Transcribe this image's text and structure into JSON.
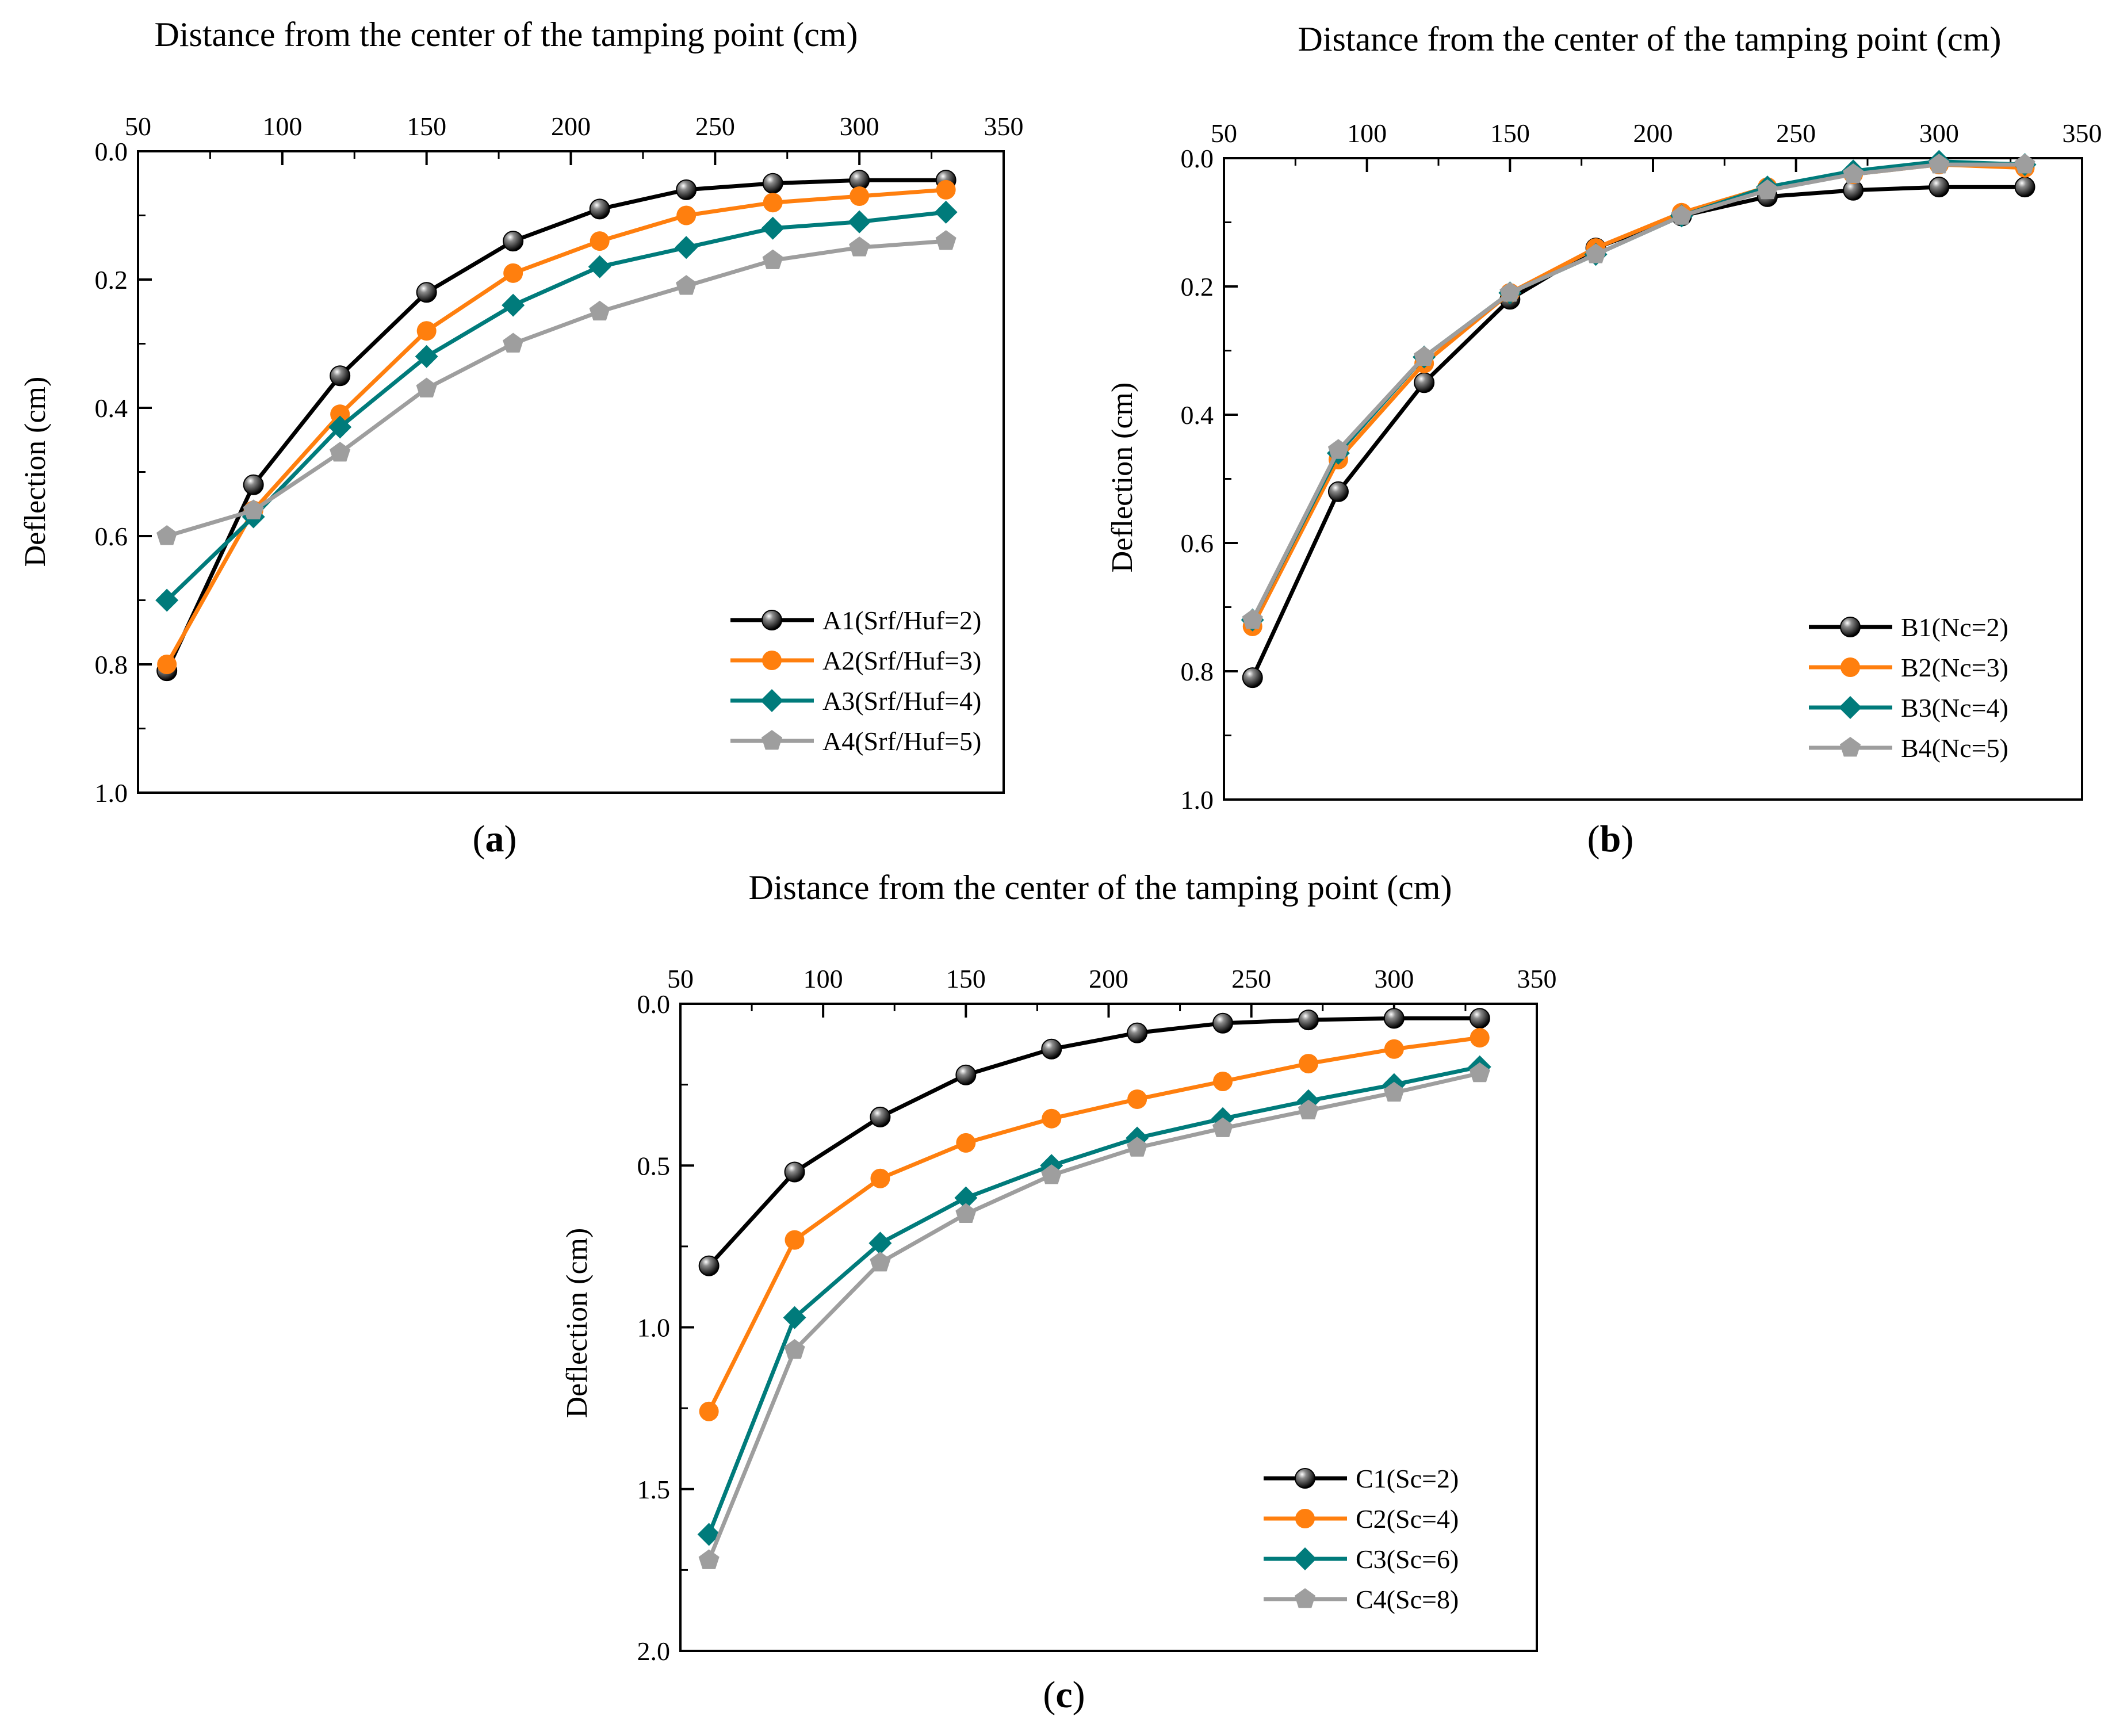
{
  "colors": {
    "series": [
      "#000000",
      "#ff7f0e",
      "#007b7b",
      "#9e9e9e"
    ],
    "axis": "#000000",
    "background": "#ffffff"
  },
  "markers": [
    "ball",
    "circle",
    "diamond",
    "pentagon"
  ],
  "chart_data": [
    {
      "type": "line",
      "panel_label": "a",
      "title": "Distance from the center of the tamping point (cm)",
      "xlabel": "Distance from the center of the tamping point (cm)",
      "ylabel": "Deflection (cm)",
      "xlim": [
        50,
        350
      ],
      "ylim": [
        0.0,
        1.0
      ],
      "y_inverted": true,
      "x_axis_position": "top",
      "xticks": [
        50,
        100,
        150,
        200,
        250,
        300,
        350
      ],
      "yticks": [
        "0.0",
        "0.2",
        "0.4",
        "0.6",
        "0.8",
        "1.0"
      ],
      "ytick_values": [
        0.0,
        0.2,
        0.4,
        0.6,
        0.8,
        1.0
      ],
      "legend_position": "bottom-right",
      "x": [
        60,
        90,
        120,
        150,
        180,
        210,
        240,
        270,
        300,
        330
      ],
      "series": [
        {
          "name": "A1(Srf/Huf=2)",
          "values": [
            0.81,
            0.52,
            0.35,
            0.22,
            0.14,
            0.09,
            0.06,
            0.05,
            0.045,
            0.045
          ]
        },
        {
          "name": "A2(Srf/Huf=3)",
          "values": [
            0.8,
            0.56,
            0.41,
            0.28,
            0.19,
            0.14,
            0.1,
            0.08,
            0.07,
            0.06
          ]
        },
        {
          "name": "A3(Srf/Huf=4)",
          "values": [
            0.7,
            0.57,
            0.43,
            0.32,
            0.24,
            0.18,
            0.15,
            0.12,
            0.11,
            0.095
          ]
        },
        {
          "name": "A4(Srf/Huf=5)",
          "values": [
            0.6,
            0.56,
            0.47,
            0.37,
            0.3,
            0.25,
            0.21,
            0.17,
            0.15,
            0.14
          ]
        }
      ]
    },
    {
      "type": "line",
      "panel_label": "b",
      "title": "Distance from the center of the tamping point (cm)",
      "xlabel": "Distance from the center of the tamping point (cm)",
      "ylabel": "Deflection (cm)",
      "xlim": [
        50,
        350
      ],
      "ylim": [
        0.0,
        1.0
      ],
      "y_inverted": true,
      "x_axis_position": "top",
      "xticks": [
        50,
        100,
        150,
        200,
        250,
        300,
        350
      ],
      "yticks": [
        "0.0",
        "0.2",
        "0.4",
        "0.6",
        "0.8",
        "1.0"
      ],
      "ytick_values": [
        0.0,
        0.2,
        0.4,
        0.6,
        0.8,
        1.0
      ],
      "legend_position": "bottom-right",
      "x": [
        60,
        90,
        120,
        150,
        180,
        210,
        240,
        270,
        300,
        330
      ],
      "series": [
        {
          "name": "B1(Nc=2)",
          "values": [
            0.81,
            0.52,
            0.35,
            0.22,
            0.14,
            0.09,
            0.06,
            0.05,
            0.045,
            0.045
          ]
        },
        {
          "name": "B2(Nc=3)",
          "values": [
            0.73,
            0.47,
            0.32,
            0.21,
            0.14,
            0.085,
            0.045,
            0.025,
            0.01,
            0.015
          ]
        },
        {
          "name": "B3(Nc=4)",
          "values": [
            0.72,
            0.46,
            0.31,
            0.21,
            0.15,
            0.09,
            0.045,
            0.02,
            0.005,
            0.01
          ]
        },
        {
          "name": "B4(Nc=5)",
          "values": [
            0.72,
            0.455,
            0.31,
            0.21,
            0.15,
            0.09,
            0.05,
            0.025,
            0.01,
            0.01
          ]
        }
      ]
    },
    {
      "type": "line",
      "panel_label": "c",
      "title": "Distance from the center of the tamping point (cm)",
      "xlabel": "Distance from the center of the tamping point (cm)",
      "ylabel": "Deflection (cm)",
      "xlim": [
        50,
        350
      ],
      "ylim": [
        0.0,
        2.0
      ],
      "y_inverted": true,
      "x_axis_position": "top",
      "xticks": [
        50,
        100,
        150,
        200,
        250,
        300,
        350
      ],
      "yticks": [
        "0.0",
        "0.5",
        "1.0",
        "1.5",
        "2.0"
      ],
      "ytick_values": [
        0.0,
        0.5,
        1.0,
        1.5,
        2.0
      ],
      "legend_position": "bottom-right",
      "x": [
        60,
        90,
        120,
        150,
        180,
        210,
        240,
        270,
        300,
        330
      ],
      "series": [
        {
          "name": "C1(Sc=2)",
          "values": [
            0.81,
            0.52,
            0.35,
            0.22,
            0.14,
            0.09,
            0.06,
            0.05,
            0.045,
            0.045
          ]
        },
        {
          "name": "C2(Sc=4)",
          "values": [
            1.26,
            0.73,
            0.54,
            0.43,
            0.355,
            0.295,
            0.24,
            0.185,
            0.14,
            0.105
          ]
        },
        {
          "name": "C3(Sc=6)",
          "values": [
            1.64,
            0.97,
            0.74,
            0.6,
            0.5,
            0.415,
            0.355,
            0.3,
            0.25,
            0.195
          ]
        },
        {
          "name": "C4(Sc=8)",
          "values": [
            1.72,
            1.07,
            0.8,
            0.65,
            0.53,
            0.445,
            0.385,
            0.33,
            0.275,
            0.215
          ]
        }
      ]
    }
  ]
}
